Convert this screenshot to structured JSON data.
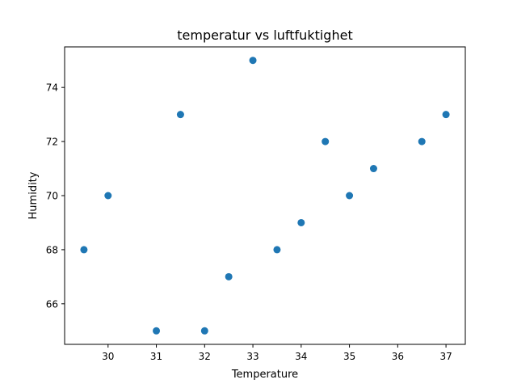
{
  "chart_data": {
    "type": "scatter",
    "title": "temperatur vs luftfuktighet",
    "xlabel": "Temperature",
    "ylabel": "Humidity",
    "xlim": [
      29.1,
      37.4
    ],
    "ylim": [
      64.5,
      75.5
    ],
    "x_ticks": [
      "30",
      "31",
      "32",
      "33",
      "34",
      "35",
      "36",
      "37"
    ],
    "y_ticks": [
      "66",
      "68",
      "70",
      "72",
      "74"
    ],
    "grid": false,
    "marker_color": "#1f77b4",
    "points": [
      {
        "x": 29.5,
        "y": 68
      },
      {
        "x": 30.0,
        "y": 70
      },
      {
        "x": 31.0,
        "y": 65
      },
      {
        "x": 31.5,
        "y": 73
      },
      {
        "x": 32.0,
        "y": 65
      },
      {
        "x": 32.5,
        "y": 67
      },
      {
        "x": 33.0,
        "y": 75
      },
      {
        "x": 33.5,
        "y": 68
      },
      {
        "x": 34.0,
        "y": 69
      },
      {
        "x": 34.5,
        "y": 72
      },
      {
        "x": 35.0,
        "y": 70
      },
      {
        "x": 35.5,
        "y": 71
      },
      {
        "x": 36.5,
        "y": 72
      },
      {
        "x": 37.0,
        "y": 73
      }
    ]
  }
}
